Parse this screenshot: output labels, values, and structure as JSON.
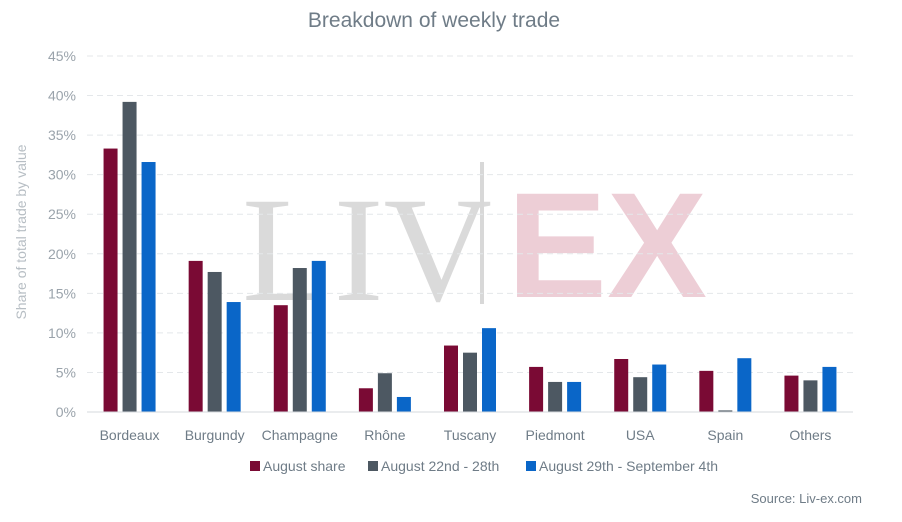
{
  "chart_data": {
    "type": "bar",
    "title": "Breakdown of weekly trade",
    "ylabel": "Share of total trade by value",
    "ylim": [
      0,
      45
    ],
    "yticks": [
      "0%",
      "5%",
      "10%",
      "15%",
      "20%",
      "25%",
      "30%",
      "35%",
      "40%",
      "45%"
    ],
    "grid": true,
    "legend_position": "bottom",
    "categories": [
      "Bordeaux",
      "Burgundy",
      "Champagne",
      "Rhône",
      "Tuscany",
      "Piedmont",
      "USA",
      "Spain",
      "Others"
    ],
    "series": [
      {
        "name": "August share",
        "color": "#7a0a34",
        "values": [
          33.3,
          19.1,
          13.5,
          3.0,
          8.4,
          5.7,
          6.7,
          5.2,
          4.6
        ]
      },
      {
        "name": "August 22nd - 28th",
        "color": "#4d5862",
        "values": [
          39.2,
          17.7,
          18.2,
          4.9,
          7.5,
          3.8,
          4.4,
          0.2,
          4.0
        ]
      },
      {
        "name": "August 29th - September 4th",
        "color": "#0a66c8",
        "values": [
          31.6,
          13.9,
          19.1,
          1.9,
          10.6,
          3.8,
          6.0,
          6.8,
          5.7
        ]
      }
    ]
  },
  "watermark": {
    "left": "LIV",
    "right": "EX"
  },
  "source": "Source: Liv-ex.com"
}
